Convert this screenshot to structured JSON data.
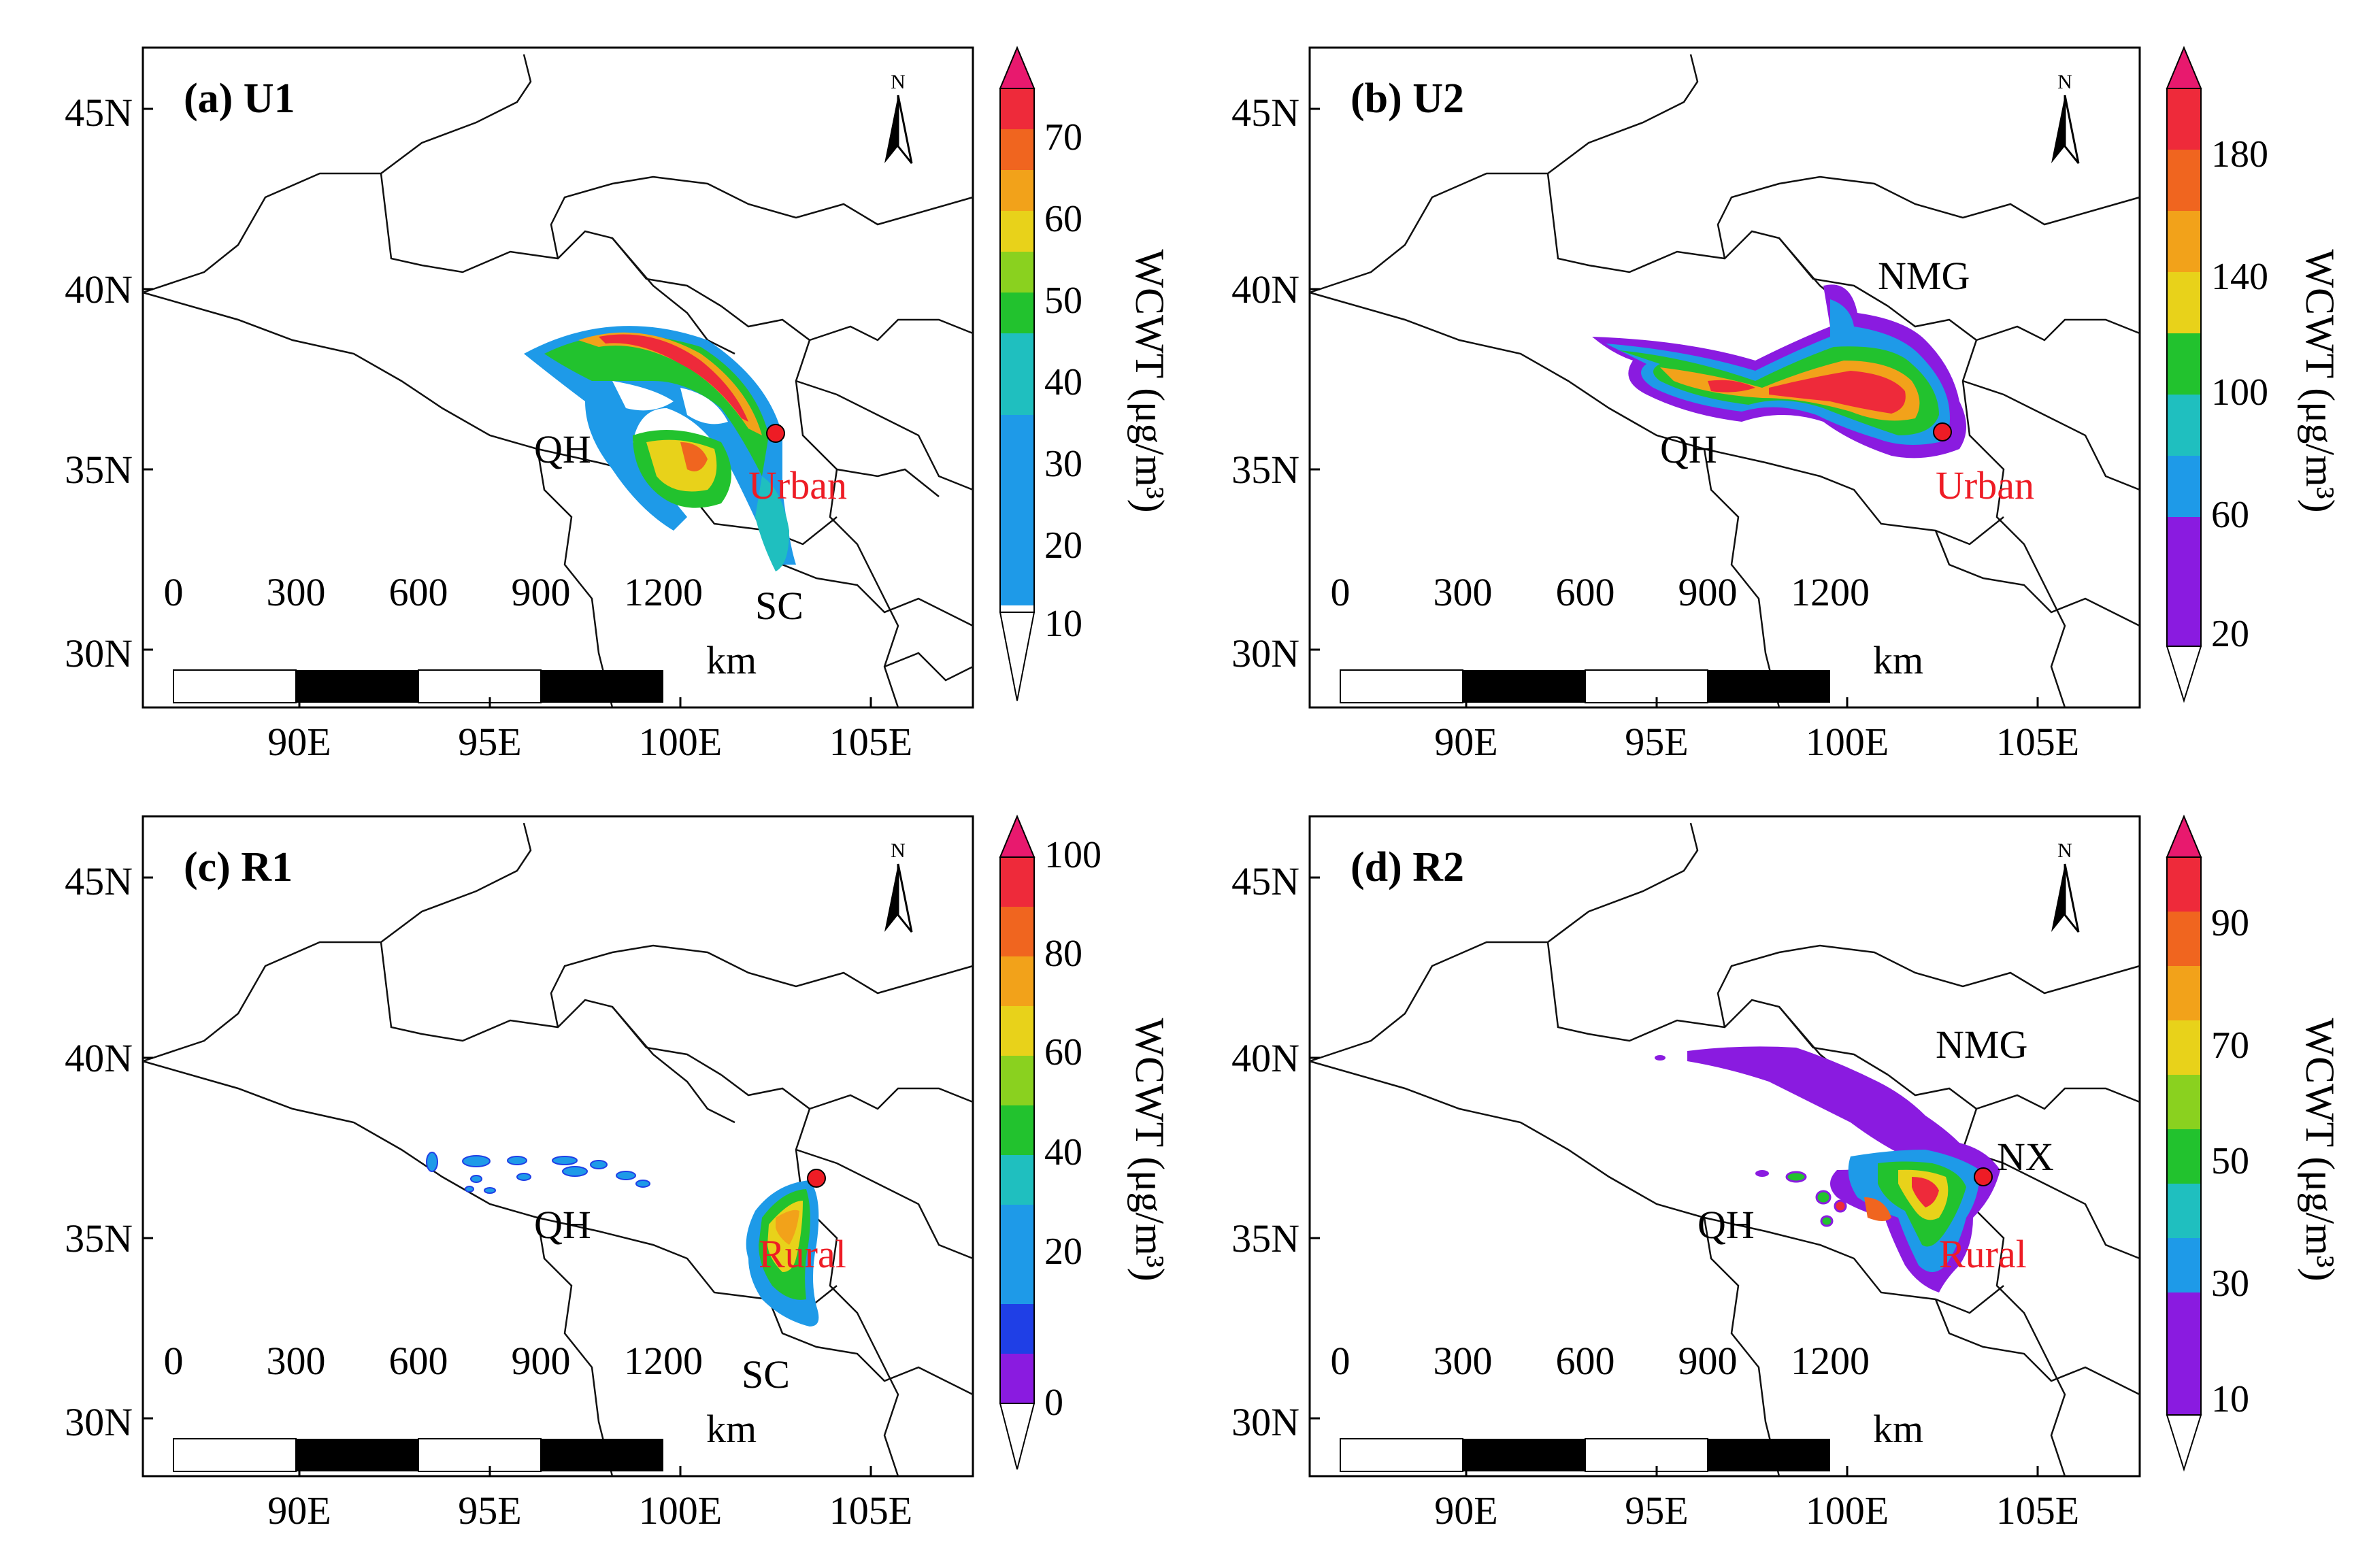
{
  "panels": [
    {
      "label": "(a) U1",
      "site": "Urban",
      "region_labels": [
        "QH",
        "SC"
      ],
      "colorbar": {
        "ticks": [
          "10",
          "20",
          "30",
          "40",
          "50",
          "60",
          "70"
        ],
        "title": "WCWT (μg/m³)"
      }
    },
    {
      "label": "(b) U2",
      "site": "Urban",
      "region_labels": [
        "NMG",
        "QH"
      ],
      "colorbar": {
        "ticks": [
          "20",
          "60",
          "100",
          "140",
          "180"
        ],
        "title": "WCWT (μg/m³)"
      }
    },
    {
      "label": "(c) R1",
      "site": "Rural",
      "region_labels": [
        "QH",
        "SC"
      ],
      "colorbar": {
        "ticks": [
          "0",
          "20",
          "40",
          "60",
          "80",
          "100"
        ],
        "title": "WCWT (μg/m³)"
      }
    },
    {
      "label": "(d) R2",
      "site": "Rural",
      "region_labels": [
        "NMG",
        "NX",
        "QH"
      ],
      "colorbar": {
        "ticks": [
          "10",
          "30",
          "50",
          "70",
          "90"
        ],
        "title": "WCWT (μg/m³)"
      }
    }
  ],
  "axes": {
    "lat_labels": [
      "45N",
      "40N",
      "35N",
      "30N"
    ],
    "lon_labels": [
      "90E",
      "95E",
      "100E",
      "105E"
    ]
  },
  "scalebar": {
    "labels": [
      "0",
      "300",
      "600",
      "900",
      "1200"
    ],
    "unit": "km"
  },
  "north_arrow": "N",
  "colors": {
    "scale": [
      "#8a1be0",
      "#1f3fe6",
      "#1e9ae8",
      "#1fbfbf",
      "#22c22e",
      "#8ad11f",
      "#e8d21a",
      "#f2a21a",
      "#f0651f",
      "#ee2a3a",
      "#e8196e"
    ],
    "site_marker": "#ee1c25",
    "site_label": "#ee1c25"
  }
}
